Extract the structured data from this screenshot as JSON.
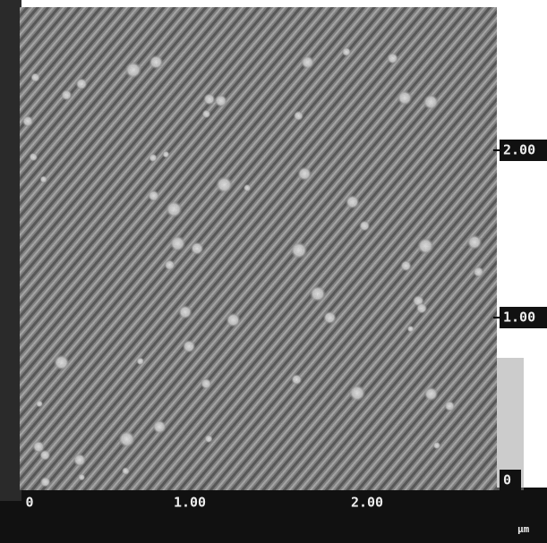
{
  "x_axis": {
    "ticks": [
      "0",
      "1.00",
      "2.00"
    ]
  },
  "y_axis": {
    "ticks": [
      "0",
      "1.00",
      "2.00"
    ]
  },
  "unit": "μm"
}
